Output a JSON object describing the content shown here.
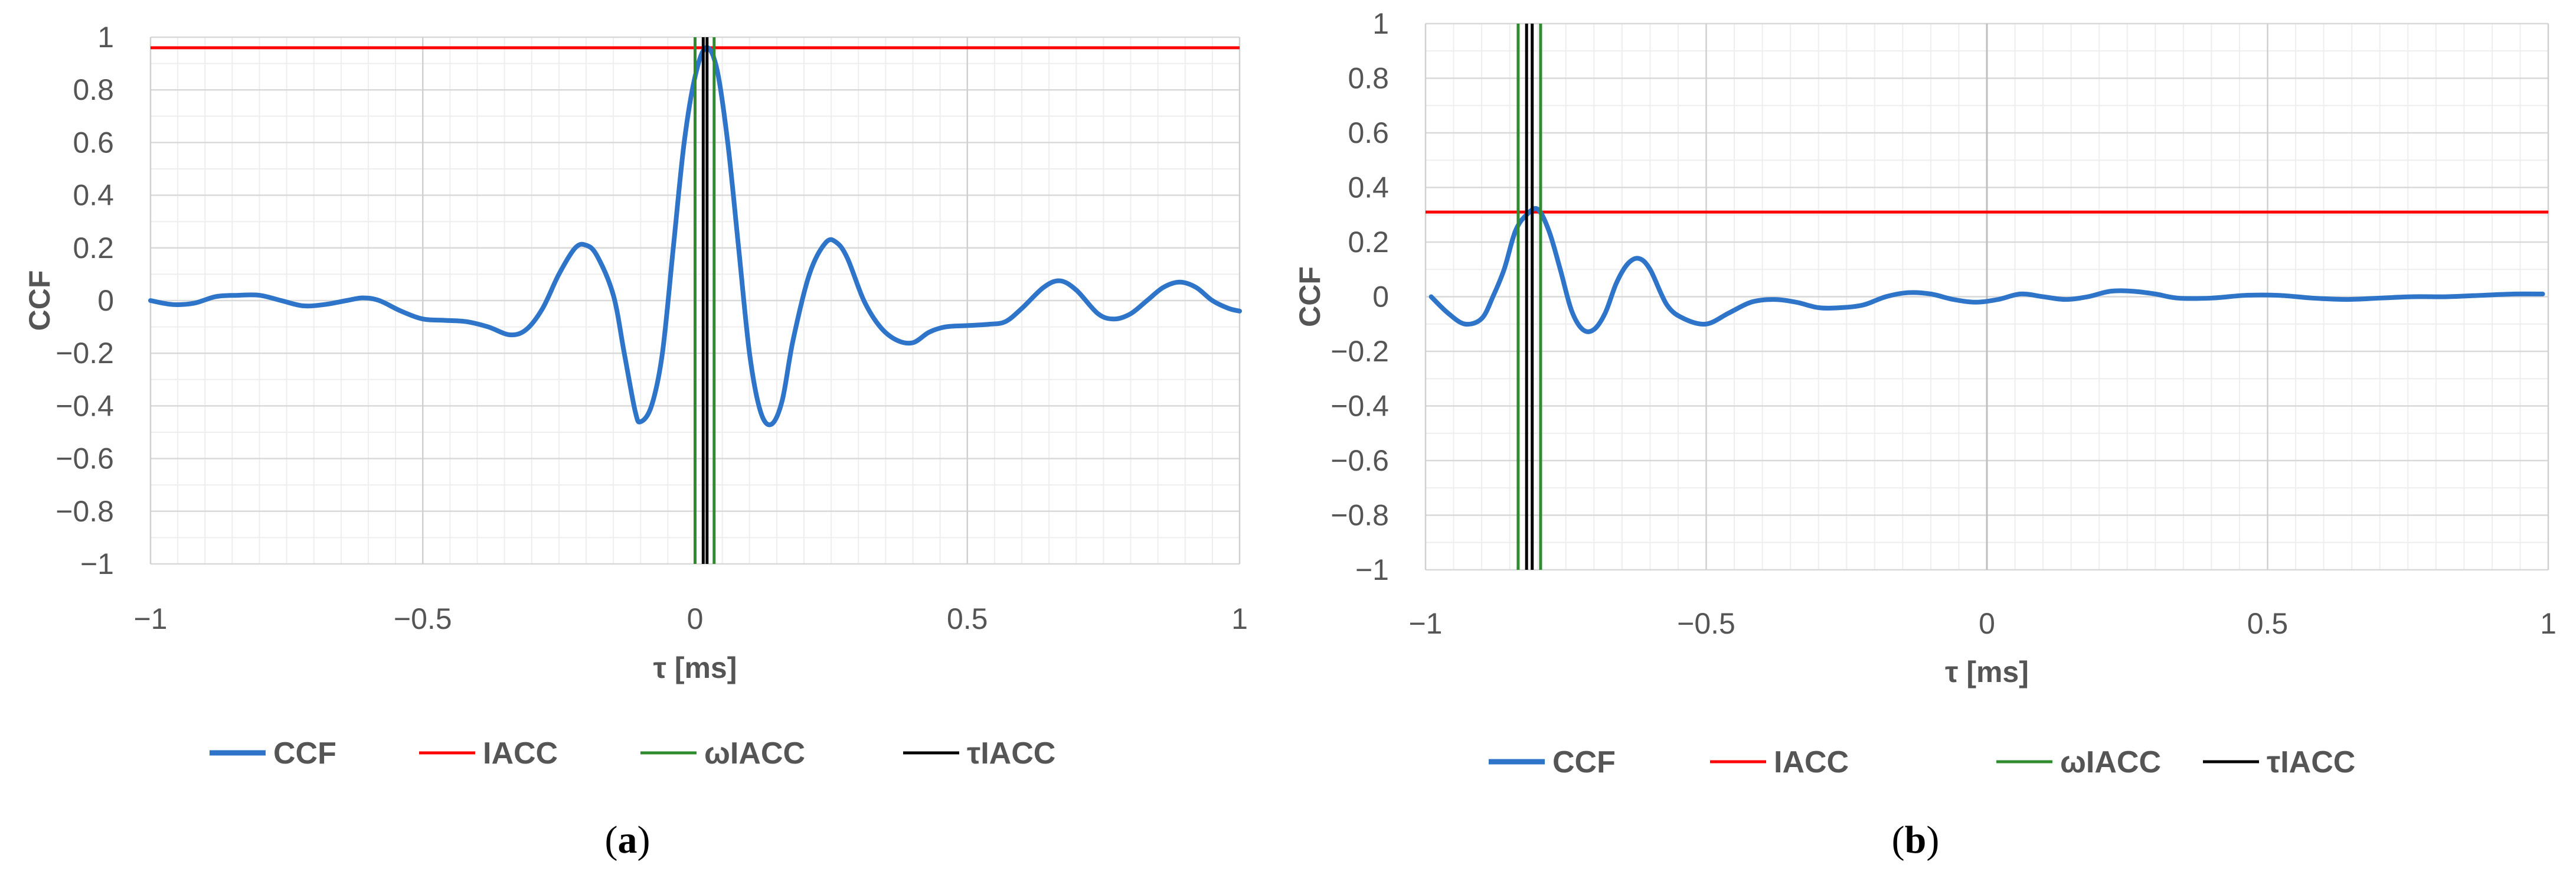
{
  "chart_data": [
    {
      "panel_label": "a",
      "type": "line",
      "xlabel": "τ [ms]",
      "ylabel": "CCF",
      "xlim": [
        -1,
        1
      ],
      "ylim": [
        -1,
        1
      ],
      "x_ticks": [
        "−1",
        "−0.5",
        "0",
        "0.5",
        "1"
      ],
      "y_ticks": [
        "1",
        "0.8",
        "0.6",
        "0.4",
        "0.2",
        "0",
        "−0.2",
        "−0.4",
        "−0.6",
        "−0.8",
        "−1"
      ],
      "grid": true,
      "legend_position": "bottom",
      "colors": {
        "CCF": "#2e75c9",
        "IACC": "#ff0000",
        "ωIACC": "#2e8b2e",
        "τIACC": "#000000"
      },
      "series": [
        {
          "name": "CCF",
          "points": [
            [
              -1,
              0
            ],
            [
              -0.96,
              -0.015
            ],
            [
              -0.92,
              -0.01
            ],
            [
              -0.88,
              0.015
            ],
            [
              -0.84,
              0.02
            ],
            [
              -0.8,
              0.02
            ],
            [
              -0.76,
              0.0
            ],
            [
              -0.72,
              -0.02
            ],
            [
              -0.68,
              -0.015
            ],
            [
              -0.64,
              0.0
            ],
            [
              -0.61,
              0.01
            ],
            [
              -0.58,
              0.0
            ],
            [
              -0.54,
              -0.04
            ],
            [
              -0.5,
              -0.07
            ],
            [
              -0.46,
              -0.075
            ],
            [
              -0.42,
              -0.08
            ],
            [
              -0.38,
              -0.1
            ],
            [
              -0.34,
              -0.13
            ],
            [
              -0.31,
              -0.11
            ],
            [
              -0.28,
              -0.03
            ],
            [
              -0.25,
              0.1
            ],
            [
              -0.22,
              0.2
            ],
            [
              -0.2,
              0.21
            ],
            [
              -0.18,
              0.17
            ],
            [
              -0.15,
              0.02
            ],
            [
              -0.13,
              -0.2
            ],
            [
              -0.11,
              -0.42
            ],
            [
              -0.1,
              -0.46
            ],
            [
              -0.08,
              -0.4
            ],
            [
              -0.06,
              -0.2
            ],
            [
              -0.04,
              0.2
            ],
            [
              -0.02,
              0.6
            ],
            [
              0.0,
              0.85
            ],
            [
              0.02,
              0.96
            ],
            [
              0.04,
              0.88
            ],
            [
              0.06,
              0.6
            ],
            [
              0.08,
              0.2
            ],
            [
              0.1,
              -0.2
            ],
            [
              0.12,
              -0.42
            ],
            [
              0.14,
              -0.47
            ],
            [
              0.16,
              -0.38
            ],
            [
              0.18,
              -0.15
            ],
            [
              0.21,
              0.1
            ],
            [
              0.24,
              0.22
            ],
            [
              0.26,
              0.22
            ],
            [
              0.28,
              0.16
            ],
            [
              0.31,
              0.0
            ],
            [
              0.34,
              -0.1
            ],
            [
              0.37,
              -0.15
            ],
            [
              0.4,
              -0.16
            ],
            [
              0.43,
              -0.12
            ],
            [
              0.46,
              -0.1
            ],
            [
              0.5,
              -0.095
            ],
            [
              0.54,
              -0.09
            ],
            [
              0.57,
              -0.08
            ],
            [
              0.6,
              -0.03
            ],
            [
              0.64,
              0.05
            ],
            [
              0.67,
              0.075
            ],
            [
              0.7,
              0.04
            ],
            [
              0.74,
              -0.05
            ],
            [
              0.77,
              -0.07
            ],
            [
              0.8,
              -0.05
            ],
            [
              0.83,
              0.0
            ],
            [
              0.86,
              0.05
            ],
            [
              0.89,
              0.07
            ],
            [
              0.92,
              0.05
            ],
            [
              0.95,
              0.0
            ],
            [
              0.98,
              -0.03
            ],
            [
              1.0,
              -0.04
            ]
          ]
        },
        {
          "name": "IACC",
          "y": 0.96
        },
        {
          "name": "ωIACC",
          "x": [
            0.0,
            0.035
          ]
        },
        {
          "name": "τIACC",
          "x": [
            0.015,
            0.022
          ]
        }
      ]
    },
    {
      "panel_label": "b",
      "type": "line",
      "xlabel": "τ [ms]",
      "ylabel": "CCF",
      "xlim": [
        -1,
        1
      ],
      "ylim": [
        -1,
        1
      ],
      "x_ticks": [
        "−1",
        "−0.5",
        "0",
        "0.5",
        "1"
      ],
      "y_ticks": [
        "1",
        "0.8",
        "0.6",
        "0.4",
        "0.2",
        "0",
        "−0.2",
        "−0.4",
        "−0.6",
        "−0.8",
        "−1"
      ],
      "grid": true,
      "legend_position": "bottom",
      "colors": {
        "CCF": "#2e75c9",
        "IACC": "#ff0000",
        "ωIACC": "#2e8b2e",
        "τIACC": "#000000"
      },
      "series": [
        {
          "name": "CCF",
          "points": [
            [
              -0.99,
              0.0
            ],
            [
              -0.96,
              -0.06
            ],
            [
              -0.93,
              -0.1
            ],
            [
              -0.9,
              -0.08
            ],
            [
              -0.88,
              0.0
            ],
            [
              -0.86,
              0.1
            ],
            [
              -0.84,
              0.24
            ],
            [
              -0.82,
              0.3
            ],
            [
              -0.8,
              0.32
            ],
            [
              -0.78,
              0.24
            ],
            [
              -0.76,
              0.1
            ],
            [
              -0.74,
              -0.05
            ],
            [
              -0.72,
              -0.12
            ],
            [
              -0.7,
              -0.12
            ],
            [
              -0.68,
              -0.06
            ],
            [
              -0.66,
              0.05
            ],
            [
              -0.64,
              0.12
            ],
            [
              -0.62,
              0.14
            ],
            [
              -0.6,
              0.1
            ],
            [
              -0.57,
              -0.03
            ],
            [
              -0.54,
              -0.08
            ],
            [
              -0.5,
              -0.1
            ],
            [
              -0.46,
              -0.06
            ],
            [
              -0.42,
              -0.02
            ],
            [
              -0.38,
              -0.01
            ],
            [
              -0.34,
              -0.02
            ],
            [
              -0.3,
              -0.04
            ],
            [
              -0.26,
              -0.04
            ],
            [
              -0.22,
              -0.03
            ],
            [
              -0.18,
              0.0
            ],
            [
              -0.14,
              0.015
            ],
            [
              -0.1,
              0.01
            ],
            [
              -0.06,
              -0.01
            ],
            [
              -0.02,
              -0.02
            ],
            [
              0.02,
              -0.01
            ],
            [
              0.06,
              0.01
            ],
            [
              0.1,
              0.0
            ],
            [
              0.14,
              -0.01
            ],
            [
              0.18,
              0.0
            ],
            [
              0.22,
              0.02
            ],
            [
              0.26,
              0.02
            ],
            [
              0.3,
              0.01
            ],
            [
              0.34,
              -0.005
            ],
            [
              0.4,
              -0.005
            ],
            [
              0.46,
              0.005
            ],
            [
              0.52,
              0.005
            ],
            [
              0.58,
              -0.005
            ],
            [
              0.64,
              -0.01
            ],
            [
              0.7,
              -0.005
            ],
            [
              0.76,
              0.0
            ],
            [
              0.82,
              0.0
            ],
            [
              0.88,
              0.005
            ],
            [
              0.94,
              0.01
            ],
            [
              0.99,
              0.01
            ]
          ]
        },
        {
          "name": "IACC",
          "y": 0.31
        },
        {
          "name": "ωIACC",
          "x": [
            -0.835,
            -0.795
          ]
        },
        {
          "name": "τIACC",
          "x": [
            -0.82,
            -0.81
          ]
        }
      ]
    }
  ]
}
